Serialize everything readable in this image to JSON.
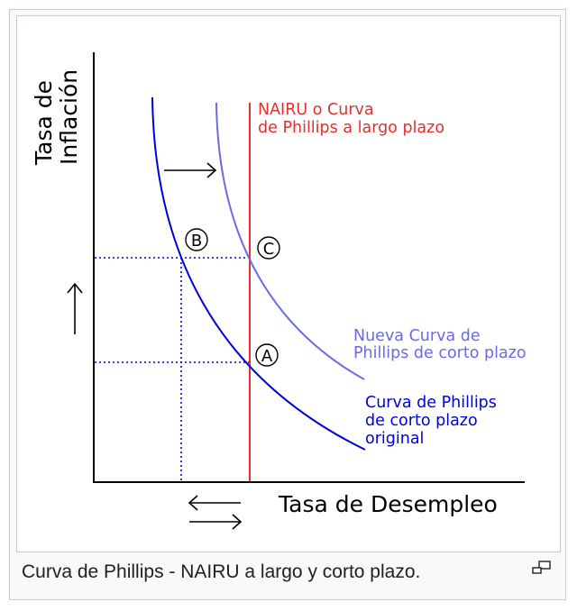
{
  "diagram": {
    "y_axis_label_line1": "Tasa de",
    "y_axis_label_line2": "Inflación",
    "x_axis_label": "Tasa de Desempleo",
    "nairu_label_line1": "NAIRU o Curva",
    "nairu_label_line2": "de Phillips a largo plazo",
    "new_curve_label_line1": "Nueva Curva de",
    "new_curve_label_line2": "Phillips de corto plazo",
    "original_curve_label_line1": "Curva de Phillips",
    "original_curve_label_line2": "de corto plazo",
    "original_curve_label_line3": "original",
    "point_a": "A",
    "point_b": "B",
    "point_c": "C",
    "colors": {
      "original_curve": "#0000dd",
      "new_curve": "#6a6ae8",
      "nairu": "#e23030",
      "axes": "#000000"
    }
  },
  "caption": {
    "text": "Curva de Phillips - NAIRU a largo y corto plazo."
  },
  "icons": {
    "magnify": "enlarge-icon"
  }
}
